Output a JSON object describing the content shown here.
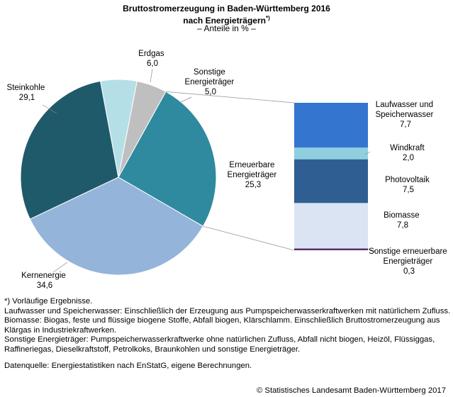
{
  "chart_data": {
    "type": "pie",
    "title_line1": "Bruttostromerzeugung in Baden-Württemberg 2016",
    "title_line2": "nach Energieträgern",
    "title_suffix": "*)",
    "subtitle": "– Anteile in % –",
    "pie": [
      {
        "name": "Erneuerbare Energieträger",
        "value": 25.3,
        "value_label": "25,3",
        "color": "#2f8a9f"
      },
      {
        "name": "Kernenergie",
        "value": 34.6,
        "value_label": "34,6",
        "color": "#95b4d9"
      },
      {
        "name": "Steinkohle",
        "value": 29.1,
        "value_label": "29,1",
        "color": "#1f5a6b"
      },
      {
        "name": "Erdgas",
        "value": 6.0,
        "value_label": "6,0",
        "color": "#b5dfe6"
      },
      {
        "name": "Sonstige Energieträger",
        "value": 5.0,
        "value_label": "5,0",
        "color": "#bfbfbf"
      }
    ],
    "breakdown_of": "Erneuerbare Energieträger",
    "breakdown": [
      {
        "name": "Laufwasser und Speicherwasser",
        "value": 7.7,
        "value_label": "7,7",
        "color": "#3476cf"
      },
      {
        "name": "Windkraft",
        "value": 2.0,
        "value_label": "2,0",
        "color": "#8fcfe0"
      },
      {
        "name": "Photovoltaik",
        "value": 7.5,
        "value_label": "7,5",
        "color": "#2f5e93"
      },
      {
        "name": "Biomasse",
        "value": 7.8,
        "value_label": "7,8",
        "color": "#dbe4f2"
      },
      {
        "name": "Sonstige erneuerbare Energieträger",
        "value": 0.3,
        "value_label": "0,3",
        "color": "#5b2d6e"
      }
    ]
  },
  "labels": {
    "erdgas": [
      "Erdgas",
      "6,0"
    ],
    "sonstige": [
      "Sonstige",
      "Energieträger",
      "5,0"
    ],
    "steinkohle": [
      "Steinkohle",
      "29,1"
    ],
    "kernenergie": [
      "Kernenergie",
      "34,6"
    ],
    "erneuerbare": [
      "Erneuerbare",
      "Energieträger",
      "25,3"
    ],
    "laufwasser": [
      "Laufwasser und",
      "Speicherwasser",
      "7,7"
    ],
    "windkraft": [
      "Windkraft",
      "2,0"
    ],
    "photovoltaik": [
      "Photovoltaik",
      "7,5"
    ],
    "biomasse": [
      "Biomasse",
      "7,8"
    ],
    "sonstige_ee": [
      "Sonstige erneuerbare",
      "Energieträger",
      "0,3"
    ]
  },
  "notes": {
    "n1": "*) Vorläufige Ergebnisse.",
    "n2": "Laufwasser und Speicherwasser: Einschließlich der Erzeugung aus Pumpspeicherwasserkraftwerken mit natürlichem Zufluss.",
    "n3": "Biomasse: Biogas, feste und flüssige biogene Stoffe, Abfall biogen, Klärschlamm. Einschließlich Bruttostromerzeugung aus Klärgas in Industriekraftwerken.",
    "n4": "Sonstige Energieträger: Pumpspeicherwasserkraftwerke ohne natürlichen Zufluss, Abfall nicht biogen, Heizöl, Flüssiggas, Raffineriegas, Dieselkraftstoff, Petrolkoks, Braunkohlen und sonstige Energieträger.",
    "source": "Datenquelle: Energiestatistiken nach EnStatG, eigene Berechnungen."
  },
  "copyright": "© Statistisches Landesamt Baden-Württemberg 2017"
}
